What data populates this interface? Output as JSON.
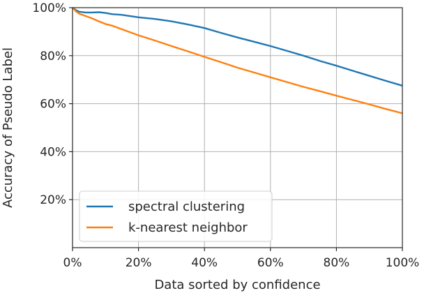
{
  "chart_data": {
    "type": "line",
    "xlabel": "Data sorted by confidence",
    "ylabel": "Accuracy of Pseudo Label",
    "xlim": [
      0,
      100
    ],
    "ylim": [
      0,
      100
    ],
    "grid": true,
    "legend_position": "bottom-left",
    "x_ticks": [
      {
        "value": 0,
        "label": "0%"
      },
      {
        "value": 20,
        "label": "20%"
      },
      {
        "value": 40,
        "label": "40%"
      },
      {
        "value": 60,
        "label": "60%"
      },
      {
        "value": 80,
        "label": "80%"
      },
      {
        "value": 100,
        "label": "100%"
      }
    ],
    "y_ticks": [
      {
        "value": 20,
        "label": "20%"
      },
      {
        "value": 40,
        "label": "40%"
      },
      {
        "value": 60,
        "label": "60%"
      },
      {
        "value": 80,
        "label": "80%"
      },
      {
        "value": 100,
        "label": "100%"
      }
    ],
    "series": [
      {
        "name": "spectral clustering",
        "color": "#1f77b4",
        "x": [
          0,
          1,
          2,
          4,
          6,
          8,
          10,
          12,
          15,
          20,
          25,
          30,
          35,
          40,
          45,
          50,
          55,
          60,
          65,
          70,
          75,
          80,
          85,
          90,
          95,
          100
        ],
        "y": [
          100,
          99,
          98.3,
          98.0,
          98.0,
          98.1,
          97.8,
          97.3,
          97.0,
          96.0,
          95.3,
          94.3,
          93.0,
          91.5,
          89.5,
          87.6,
          85.8,
          84.0,
          82.0,
          80.0,
          77.8,
          75.8,
          73.7,
          71.6,
          69.5,
          67.5
        ]
      },
      {
        "name": "k-nearest neighbor",
        "color": "#ff7f0e",
        "x": [
          0,
          1,
          2,
          4,
          6,
          8,
          10,
          12,
          15,
          20,
          25,
          30,
          35,
          40,
          45,
          50,
          55,
          60,
          65,
          70,
          75,
          80,
          85,
          90,
          95,
          100
        ],
        "y": [
          100,
          98.5,
          97.5,
          96.5,
          95.5,
          94.3,
          93.2,
          92.5,
          91.0,
          88.5,
          86.3,
          84.0,
          81.8,
          79.5,
          77.3,
          75.0,
          73.0,
          71.0,
          69.0,
          67.0,
          65.2,
          63.3,
          61.5,
          59.7,
          57.8,
          56.0
        ]
      }
    ]
  }
}
